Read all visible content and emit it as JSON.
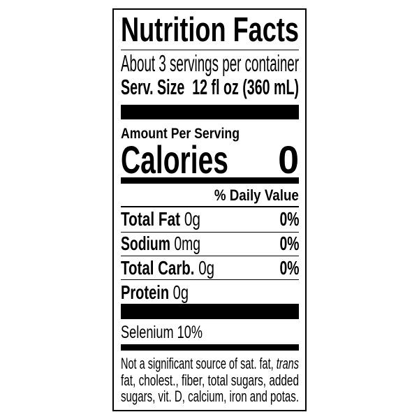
{
  "label": {
    "title": "Nutrition Facts",
    "servings_per_container": "About 3 servings per container",
    "serving_size_label": "Serv. Size",
    "serving_size_value": "12 fl oz (360 mL)",
    "amount_per_serving": "Amount Per Serving",
    "calories_label": "Calories",
    "calories_value": "0",
    "daily_value_header": "% Daily Value",
    "nutrients": [
      {
        "name": "Total Fat",
        "amount": "0g",
        "dv": "0%"
      },
      {
        "name": "Sodium",
        "amount": "0mg",
        "dv": "0%"
      },
      {
        "name": "Total Carb.",
        "amount": "0g",
        "dv": "0%"
      },
      {
        "name": "Protein",
        "amount": "0g",
        "dv": ""
      }
    ],
    "vitamins": [
      {
        "text": "Selenium 10%"
      }
    ],
    "footnote": {
      "line1": "Not a significant source of sat. fat, ",
      "line1_italic": "trans",
      "line2": "fat, cholest., fiber, total sugars, added",
      "line3": "sugars, vit. D, calcium, iron and potas."
    }
  }
}
